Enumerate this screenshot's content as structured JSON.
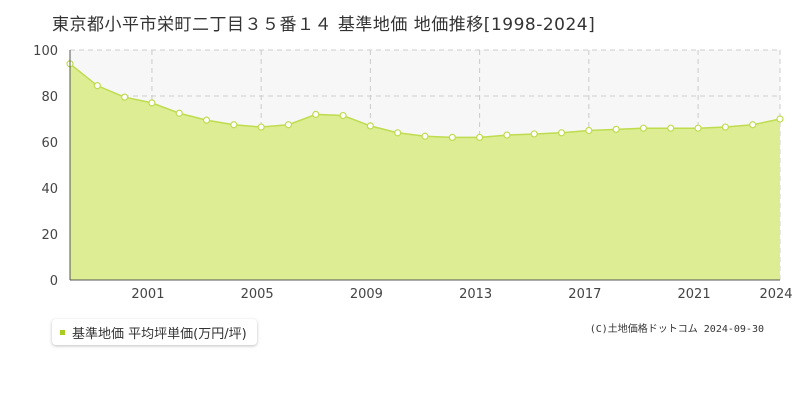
{
  "title": "東京都小平市栄町二丁目３５番１４ 基準地価 地価推移[1998-2024]",
  "legend_label": "基準地価 平均坪単価(万円/坪)",
  "credit": "(C)土地価格ドットコム 2024-09-30",
  "colors": {
    "area_fill": "#dced93",
    "line": "#bfdc4f",
    "marker_fill": "#ffffff",
    "plot_bg": "#f7f7f7",
    "grid": "#cccccc",
    "legend_swatch": "#a8cc20"
  },
  "chart_data": {
    "type": "area",
    "title": "",
    "xlabel": "",
    "ylabel": "",
    "x": [
      1998,
      1999,
      2000,
      2001,
      2002,
      2003,
      2004,
      2005,
      2006,
      2007,
      2008,
      2009,
      2010,
      2011,
      2012,
      2013,
      2014,
      2015,
      2016,
      2017,
      2018,
      2019,
      2020,
      2021,
      2022,
      2023,
      2024
    ],
    "series": [
      {
        "name": "基準地価 平均坪単価(万円/坪)",
        "values": [
          94,
          84.5,
          79.5,
          77,
          72.5,
          69.5,
          67.5,
          66.5,
          67.5,
          72,
          71.5,
          67,
          64,
          62.5,
          62,
          62,
          63,
          63.5,
          64,
          65,
          65.5,
          66,
          66,
          66,
          66.5,
          67.5,
          70
        ]
      }
    ],
    "xlim": [
      1998,
      2024
    ],
    "ylim": [
      0,
      100
    ],
    "y_ticks": [
      0,
      20,
      40,
      60,
      80,
      100
    ],
    "x_ticks": [
      2001,
      2005,
      2009,
      2013,
      2017,
      2021,
      2024
    ],
    "grid": true,
    "legend_position": "bottom-left"
  }
}
